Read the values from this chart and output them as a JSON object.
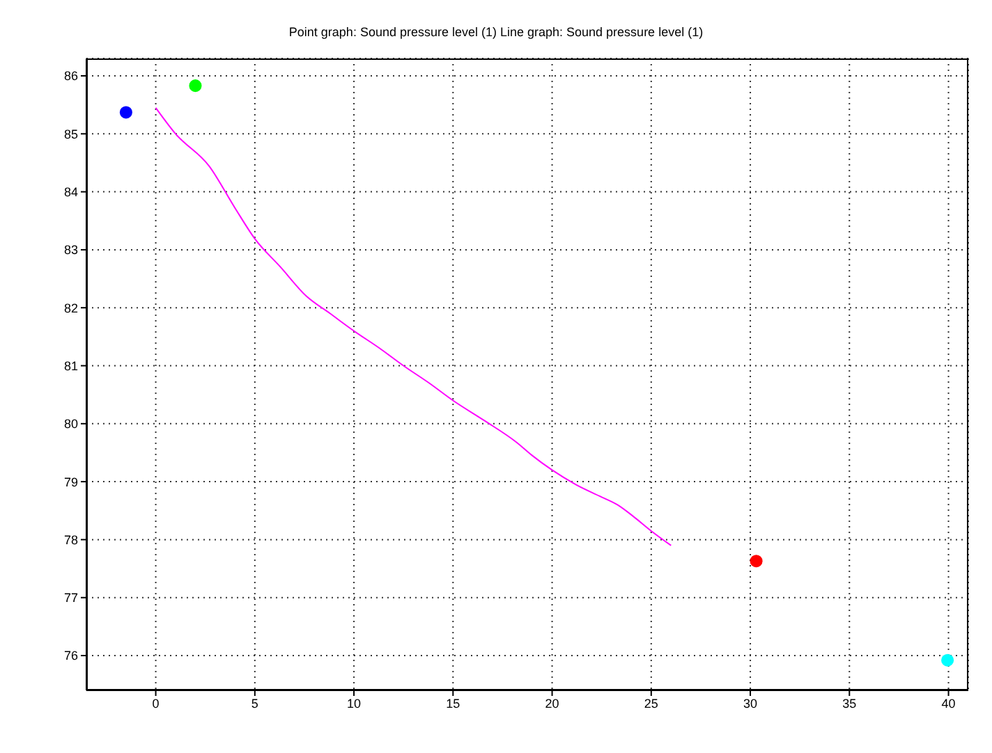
{
  "chart_data": {
    "type": "scatter",
    "title": "Point graph: Sound pressure level (1) Line graph: Sound pressure level (1)",
    "series": [
      {
        "x": [
          -1.5,
          2.0,
          30.3,
          39.95
        ],
        "values": [
          85.37,
          85.83,
          77.63,
          75.92
        ],
        "colors": [
          "#0000ff",
          "#00ff00",
          "#ff0000",
          "#00ffff"
        ],
        "marker": "circle"
      },
      {
        "type": "line",
        "color": "#ff00ff",
        "marker": "none",
        "line_style": "solid",
        "x": [
          0,
          1,
          2.7,
          4,
          5,
          6.3,
          7.6,
          8.8,
          10,
          11.3,
          12.5,
          13.8,
          15,
          16.6,
          18.2,
          19,
          20,
          21.2,
          22.4,
          23.3,
          24.1,
          25,
          26
        ],
        "values": [
          85.45,
          85.0,
          84.44,
          83.72,
          83.19,
          82.7,
          82.2,
          81.9,
          81.6,
          81.3,
          81.0,
          80.7,
          80.4,
          80.05,
          79.68,
          79.45,
          79.2,
          78.95,
          78.75,
          78.6,
          78.4,
          78.15,
          77.9
        ]
      }
    ],
    "xlim": [
      -3.5,
      41
    ],
    "xticks": [
      0,
      5,
      10,
      15,
      20,
      25,
      30,
      35,
      40
    ],
    "ylim": [
      75.4,
      86.3
    ],
    "yticks": [
      76,
      77,
      78,
      79,
      80,
      81,
      82,
      83,
      84,
      85,
      86
    ],
    "grid": true,
    "legend": false
  }
}
